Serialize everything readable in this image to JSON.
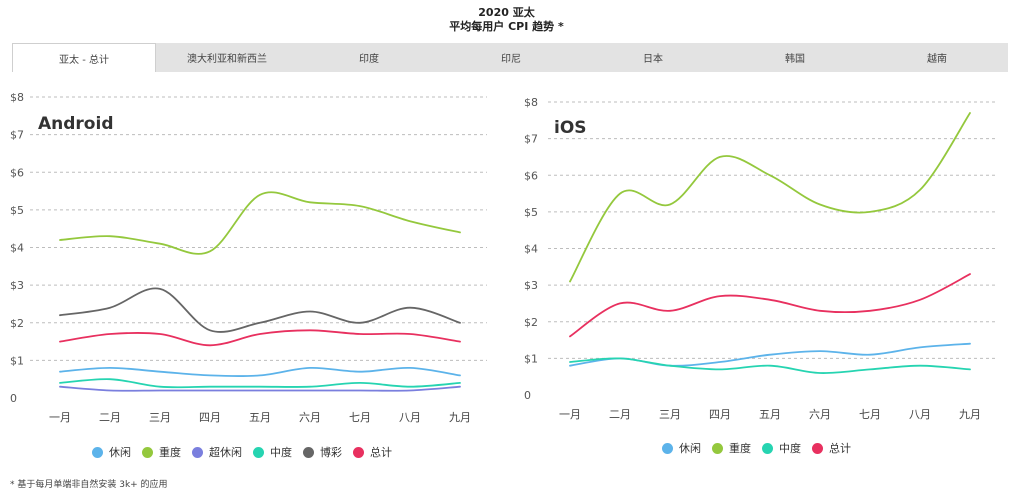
{
  "header": {
    "title_line1": "2020 亚太",
    "title_line2": "平均每用户 CPI 趋势 *"
  },
  "tabs": [
    {
      "label": "亚太 - 总计",
      "active": true
    },
    {
      "label": "澳大利亚和新西兰",
      "active": false
    },
    {
      "label": "印度",
      "active": false
    },
    {
      "label": "印尼",
      "active": false
    },
    {
      "label": "日本",
      "active": false
    },
    {
      "label": "韩国",
      "active": false
    },
    {
      "label": "越南",
      "active": false
    }
  ],
  "footnote": "* 基于每月单端非自然安装 3k+ 的应用",
  "colors": {
    "casual": "#5cb3ea",
    "hardcore": "#94c83d",
    "hypercasual": "#7a7fde",
    "midcore": "#26d4b1",
    "gambling": "#666666",
    "total": "#e8305f"
  },
  "chart_data": [
    {
      "type": "line",
      "title": "Android",
      "categories": [
        "一月",
        "二月",
        "三月",
        "四月",
        "五月",
        "六月",
        "七月",
        "八月",
        "九月"
      ],
      "y_ticks": [
        "0",
        "$1",
        "$2",
        "$3",
        "$4",
        "$5",
        "$6",
        "$7",
        "$8"
      ],
      "ylim": [
        0,
        8
      ],
      "grid": true,
      "legend_position": "bottom",
      "series": [
        {
          "name": "休闲",
          "color_key": "casual",
          "values": [
            0.7,
            0.8,
            0.7,
            0.6,
            0.6,
            0.8,
            0.7,
            0.8,
            0.6
          ]
        },
        {
          "name": "重度",
          "color_key": "hardcore",
          "values": [
            4.2,
            4.3,
            4.1,
            3.9,
            5.4,
            5.2,
            5.1,
            4.7,
            4.4
          ]
        },
        {
          "name": "超休闲",
          "color_key": "hypercasual",
          "values": [
            0.3,
            0.2,
            0.2,
            0.2,
            0.2,
            0.2,
            0.2,
            0.2,
            0.3
          ]
        },
        {
          "name": "中度",
          "color_key": "midcore",
          "values": [
            0.4,
            0.5,
            0.3,
            0.3,
            0.3,
            0.3,
            0.4,
            0.3,
            0.4
          ]
        },
        {
          "name": "博彩",
          "color_key": "gambling",
          "values": [
            2.2,
            2.4,
            2.9,
            1.8,
            2.0,
            2.3,
            2.0,
            2.4,
            2.0
          ]
        },
        {
          "name": "总计",
          "color_key": "total",
          "values": [
            1.5,
            1.7,
            1.7,
            1.4,
            1.7,
            1.8,
            1.7,
            1.7,
            1.5
          ]
        }
      ]
    },
    {
      "type": "line",
      "title": "iOS",
      "categories": [
        "一月",
        "二月",
        "三月",
        "四月",
        "五月",
        "六月",
        "七月",
        "八月",
        "九月"
      ],
      "y_ticks": [
        "0",
        "$1",
        "$2",
        "$3",
        "$4",
        "$5",
        "$6",
        "$7",
        "$8"
      ],
      "ylim": [
        0,
        8
      ],
      "grid": true,
      "legend_position": "bottom",
      "series": [
        {
          "name": "休闲",
          "color_key": "casual",
          "values": [
            0.8,
            1.0,
            0.8,
            0.9,
            1.1,
            1.2,
            1.1,
            1.3,
            1.4
          ]
        },
        {
          "name": "重度",
          "color_key": "hardcore",
          "values": [
            3.1,
            5.5,
            5.2,
            6.5,
            6.0,
            5.2,
            5.0,
            5.6,
            7.7
          ]
        },
        {
          "name": "中度",
          "color_key": "midcore",
          "values": [
            0.9,
            1.0,
            0.8,
            0.7,
            0.8,
            0.6,
            0.7,
            0.8,
            0.7
          ]
        },
        {
          "name": "总计",
          "color_key": "total",
          "values": [
            1.6,
            2.5,
            2.3,
            2.7,
            2.6,
            2.3,
            2.3,
            2.6,
            3.3
          ]
        }
      ]
    }
  ]
}
